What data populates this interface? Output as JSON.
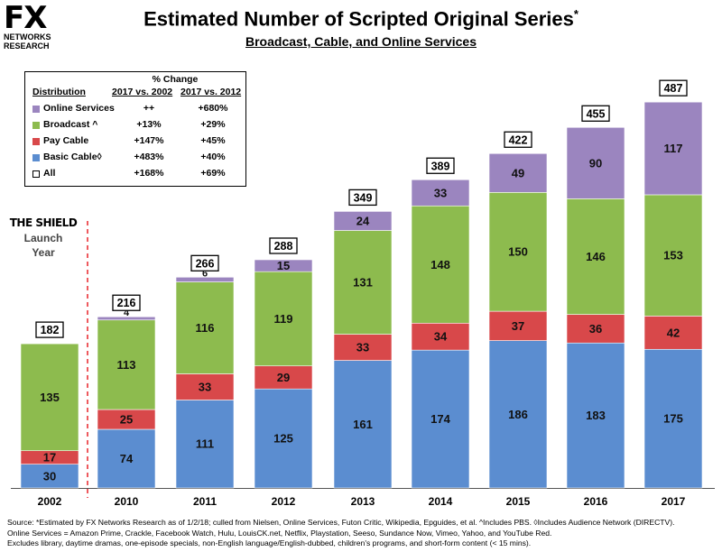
{
  "logo": {
    "mark": "FX",
    "line1": "NETWORKS",
    "line2": "RESEARCH"
  },
  "header": {
    "title": "Estimated Number of Scripted Original Series",
    "title_mark": "*",
    "subtitle": "Broadcast, Cable, and Online Services"
  },
  "legend": {
    "pct_change_label": "% Change",
    "col_distribution": "Distribution",
    "col_1": "2017 vs. 2002",
    "col_2": "2017 vs. 2012",
    "rows": [
      {
        "name": "Online Services",
        "c1": "++",
        "c2": "+680%",
        "color": "#9b85bf"
      },
      {
        "name": "Broadcast ^",
        "c1": "+13%",
        "c2": "+29%",
        "color": "#8dbb4e"
      },
      {
        "name": "Pay Cable",
        "c1": "+147%",
        "c2": "+45%",
        "color": "#d8484a"
      },
      {
        "name": "Basic Cable◊",
        "c1": "+483%",
        "c2": "+40%",
        "color": "#5b8dd0"
      },
      {
        "name": "All",
        "c1": "+168%",
        "c2": "+69%",
        "color": "#ffffff"
      }
    ]
  },
  "annotation": {
    "shield": "THE SHIELD",
    "launch_line1": "Launch",
    "launch_line2": "Year"
  },
  "source": {
    "line1": "Source:  *Estimated by FX Networks Research as of 1/2/18; culled from Nielsen, Online Services, Futon Critic, Wikipedia, Epguides, et al.  ^Includes PBS.  ◊Includes Audience Network (DIRECTV).",
    "line2": "Online Services = Amazon Prime, Crackle, Facebook Watch, Hulu, LouisCK.net, Netflix, Playstation, Seeso, Sundance Now, Vimeo, Yahoo, and YouTube Red.",
    "line3": "Excludes library, daytime dramas, one-episode specials, non-English language/English-dubbed, children's programs, and short-form content (< 15 mins)."
  },
  "chart_data": {
    "type": "bar",
    "stacked": true,
    "categories": [
      "2002",
      "2010",
      "2011",
      "2012",
      "2013",
      "2014",
      "2015",
      "2016",
      "2017"
    ],
    "series": [
      {
        "name": "Basic Cable◊",
        "color": "#5b8dd0",
        "values": [
          30,
          74,
          111,
          125,
          161,
          174,
          186,
          183,
          175
        ]
      },
      {
        "name": "Pay Cable",
        "color": "#d8484a",
        "values": [
          17,
          25,
          33,
          29,
          33,
          34,
          37,
          36,
          42
        ]
      },
      {
        "name": "Broadcast ^",
        "color": "#8dbb4e",
        "values": [
          135,
          113,
          116,
          119,
          131,
          148,
          150,
          146,
          153
        ]
      },
      {
        "name": "Online Services",
        "color": "#9b85bf",
        "values": [
          0,
          4,
          6,
          15,
          24,
          33,
          49,
          90,
          117
        ]
      }
    ],
    "totals": [
      182,
      216,
      266,
      288,
      349,
      389,
      422,
      455,
      487
    ],
    "ylim": [
      0,
      500
    ],
    "grid": false,
    "legend_position": "top-left",
    "reference_line": {
      "between": [
        "2002",
        "2010"
      ],
      "style": "dashed",
      "color": "#e8232a"
    }
  }
}
